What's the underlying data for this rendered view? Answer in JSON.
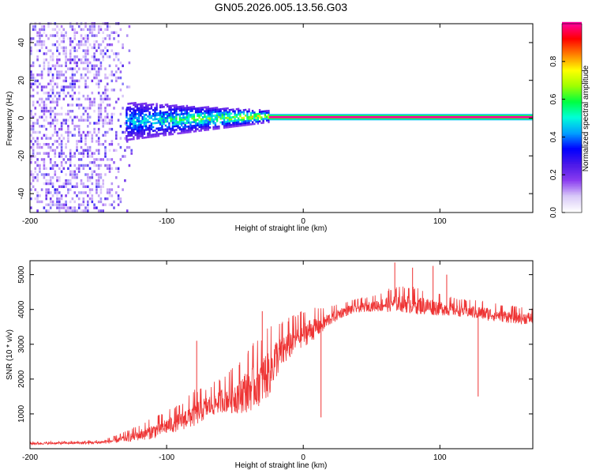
{
  "page_title": "GN05.2026.005.13.56.G03",
  "chart_data": [
    {
      "type": "heatmap",
      "title": "GN05.2026.005.13.56.G03",
      "xlabel": "Height of straight line (km)",
      "ylabel": "Frequency (Hz)",
      "xlim": [
        -200,
        168
      ],
      "ylim": [
        -50,
        50
      ],
      "xticks": [
        -200,
        -100,
        0,
        100
      ],
      "yticks": [
        -40,
        -20,
        0,
        20,
        40
      ],
      "xtick_labels": [
        "-200",
        "-100",
        "0",
        "100"
      ],
      "ytick_labels": [
        "-40",
        "-20",
        "0",
        "20",
        "40"
      ],
      "colorbar": {
        "label": "Normalized spectral amplitude",
        "range": [
          0,
          1
        ],
        "ticks": [
          0.0,
          0.2,
          0.4,
          0.6,
          0.8
        ],
        "tick_labels": [
          "0.0",
          "0.2",
          "0.4",
          "0.6",
          "0.8"
        ],
        "colormap": [
          "#ffffff",
          "#d8c8f8",
          "#8a3cf0",
          "#4a18e8",
          "#0000ff",
          "#00a0ff",
          "#00ffd8",
          "#00ff40",
          "#a0ff00",
          "#ffff00",
          "#ff8000",
          "#ff0000",
          "#ff00a0"
        ]
      },
      "features": [
        {
          "name": "noise",
          "x_range": [
            -200,
            -125
          ],
          "freq_range": [
            -50,
            50
          ],
          "amplitude": 0.2
        },
        {
          "name": "signal_cloud",
          "x_range": [
            -130,
            -25
          ],
          "freq_half_width": [
            10,
            3
          ],
          "amplitude_peak": 0.55
        },
        {
          "name": "carrier",
          "x_range": [
            -25,
            168
          ],
          "freq": 0.5,
          "amplitude": 1.0
        }
      ],
      "grid": false
    },
    {
      "type": "line",
      "xlabel": "Height of straight line (km)",
      "ylabel": "SNR (10 * v/v)",
      "xlim": [
        -200,
        168
      ],
      "ylim": [
        0,
        5400
      ],
      "xticks": [
        -200,
        -100,
        0,
        100
      ],
      "yticks": [
        1000,
        2000,
        3000,
        4000,
        5000
      ],
      "xtick_labels": [
        "-200",
        "-100",
        "0",
        "100"
      ],
      "ytick_labels": [
        "1000",
        "2000",
        "3000",
        "4000",
        "5000"
      ],
      "color": "#ee3333",
      "series": [
        {
          "x": [
            -200,
            -180,
            -160,
            -150,
            -140,
            -130,
            -120,
            -110,
            -100,
            -90,
            -80,
            -70,
            -60,
            -50,
            -40,
            -30,
            -25,
            -20,
            -15,
            -10,
            -5,
            0,
            5,
            10,
            15,
            20,
            25,
            30,
            40,
            50,
            60,
            70,
            80,
            90,
            100,
            110,
            120,
            130,
            140,
            150,
            160,
            168
          ],
          "y": [
            150,
            160,
            170,
            180,
            220,
            300,
            400,
            500,
            650,
            800,
            1000,
            1200,
            1400,
            1500,
            1700,
            2000,
            2200,
            2600,
            2800,
            3000,
            3200,
            3300,
            3400,
            3500,
            3600,
            3750,
            3850,
            3950,
            4050,
            4100,
            4150,
            4200,
            4150,
            4100,
            4050,
            4000,
            3950,
            3900,
            3850,
            3800,
            3750,
            3750
          ],
          "spread": [
            60,
            60,
            70,
            80,
            120,
            200,
            300,
            400,
            450,
            500,
            700,
            600,
            650,
            900,
            1200,
            1300,
            1300,
            1100,
            900,
            800,
            700,
            700,
            650,
            550,
            450,
            350,
            300,
            280,
            260,
            280,
            420,
            480,
            520,
            480,
            400,
            350,
            330,
            380,
            350,
            330,
            320,
            320
          ]
        }
      ],
      "spikes": [
        {
          "x": -78,
          "y": 3100
        },
        {
          "x": -30,
          "y": 3950
        },
        {
          "x": 13,
          "y": 900
        },
        {
          "x": 67,
          "y": 5350
        },
        {
          "x": 80,
          "y": 5200
        },
        {
          "x": 95,
          "y": 5250
        },
        {
          "x": 105,
          "y": 5000
        },
        {
          "x": 128,
          "y": 1500
        }
      ],
      "grid": false
    }
  ]
}
